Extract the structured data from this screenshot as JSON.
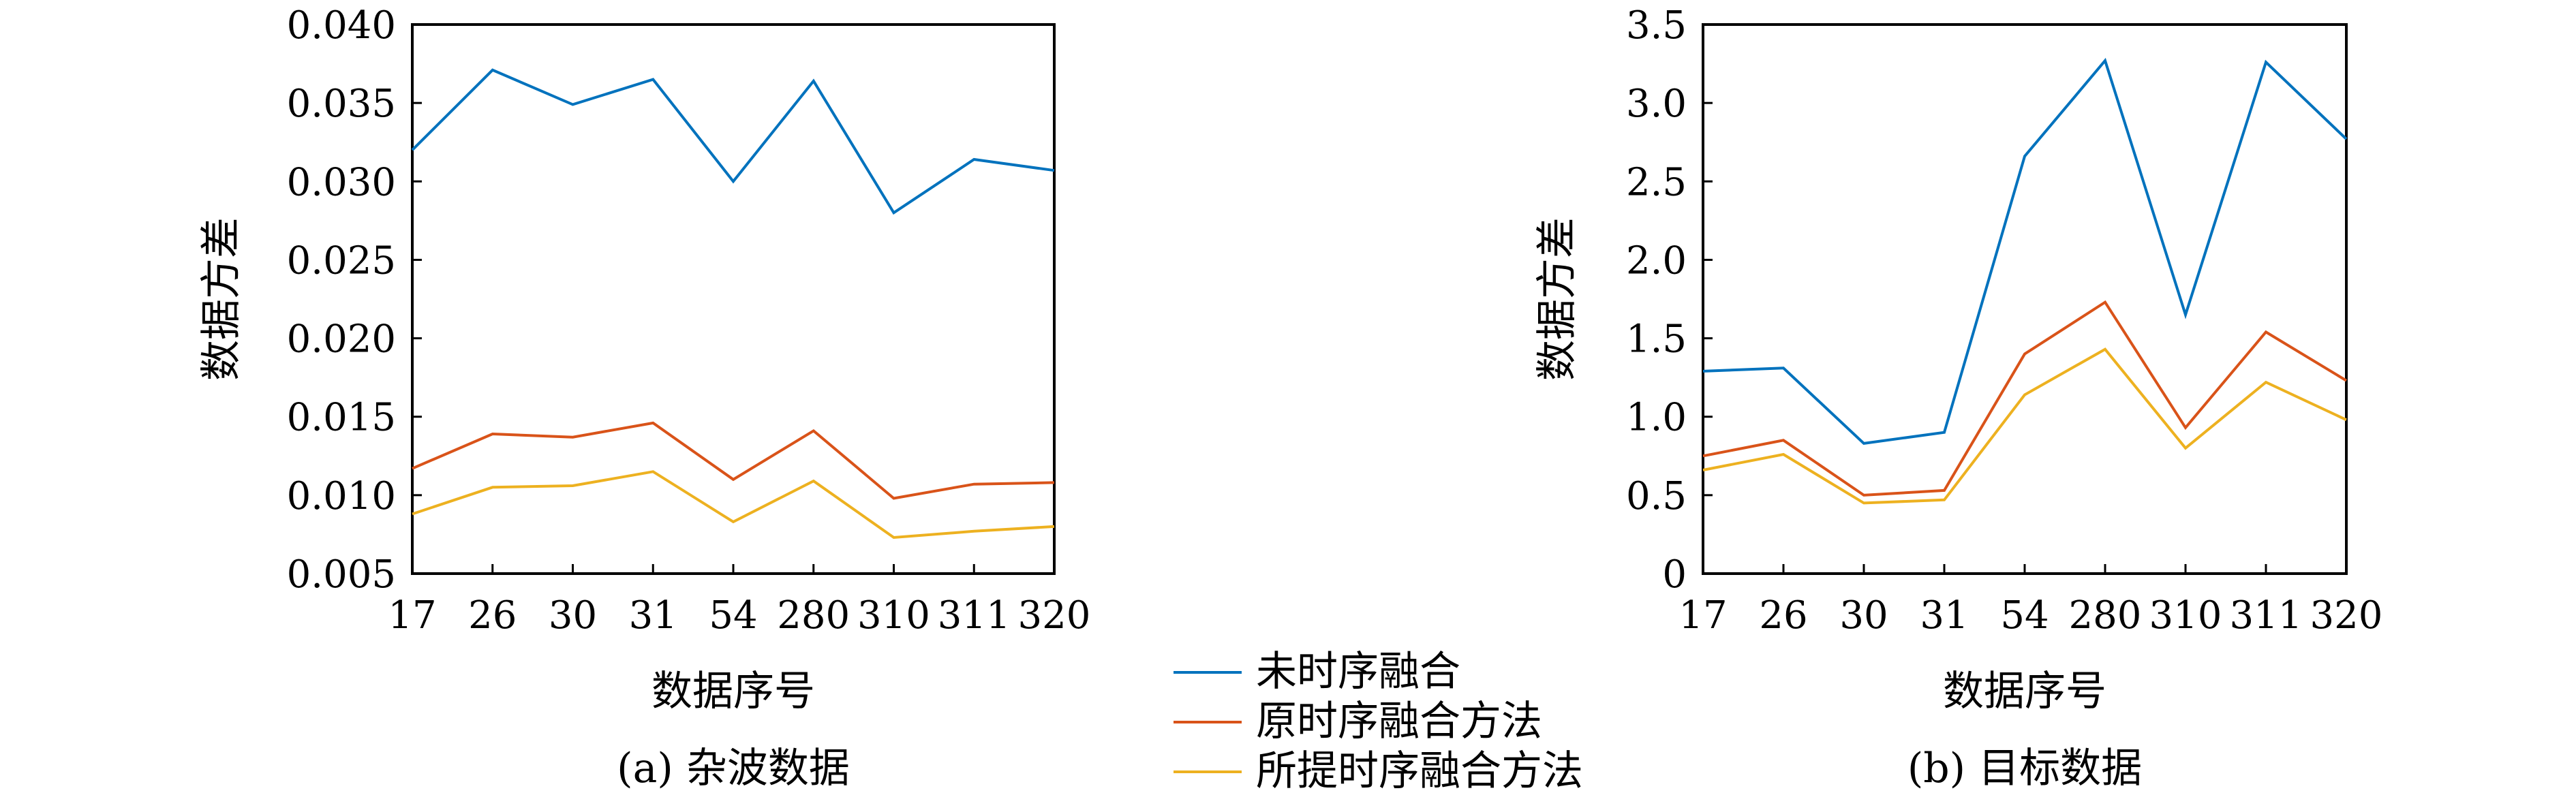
{
  "colors": {
    "series1": "#0072bd",
    "series2": "#d95319",
    "series3": "#edb120",
    "axis": "#000000"
  },
  "legend": {
    "entries": [
      "未时序融合",
      "原时序融合方法",
      "所提时序融合方法"
    ]
  },
  "chart_data": [
    {
      "type": "line",
      "caption": "(a) 杂波数据",
      "xlabel": "数据序号",
      "ylabel": "数据方差",
      "categories": [
        "17",
        "26",
        "30",
        "31",
        "54",
        "280",
        "310",
        "311",
        "320"
      ],
      "ylim": [
        0.005,
        0.04
      ],
      "yticks": [
        "0.005",
        "0.010",
        "0.015",
        "0.020",
        "0.025",
        "0.030",
        "0.035",
        "0.040"
      ],
      "grid": false,
      "series": [
        {
          "name": "未时序融合",
          "values": [
            0.032,
            0.0371,
            0.0349,
            0.0365,
            0.03,
            0.0364,
            0.028,
            0.0314,
            0.0307
          ]
        },
        {
          "name": "原时序融合方法",
          "values": [
            0.0117,
            0.0139,
            0.0137,
            0.0146,
            0.011,
            0.0141,
            0.0098,
            0.0107,
            0.0108
          ]
        },
        {
          "name": "所提时序融合方法",
          "values": [
            0.0088,
            0.0105,
            0.0106,
            0.0115,
            0.0083,
            0.0109,
            0.0073,
            0.0077,
            0.008
          ]
        }
      ]
    },
    {
      "type": "line",
      "caption": "(b) 目标数据",
      "xlabel": "数据序号",
      "ylabel": "数据方差",
      "categories": [
        "17",
        "26",
        "30",
        "31",
        "54",
        "280",
        "310",
        "311",
        "320"
      ],
      "ylim": [
        0,
        3.5
      ],
      "yticks": [
        "0",
        "0.5",
        "1.0",
        "1.5",
        "2.0",
        "2.5",
        "3.0",
        "3.5"
      ],
      "grid": false,
      "series": [
        {
          "name": "未时序融合",
          "values": [
            1.29,
            1.31,
            0.83,
            0.9,
            2.66,
            3.27,
            1.65,
            3.26,
            2.77
          ]
        },
        {
          "name": "原时序融合方法",
          "values": [
            0.75,
            0.85,
            0.5,
            0.53,
            1.4,
            1.73,
            0.93,
            1.54,
            1.23
          ]
        },
        {
          "name": "所提时序融合方法",
          "values": [
            0.66,
            0.76,
            0.45,
            0.47,
            1.14,
            1.43,
            0.8,
            1.22,
            0.98
          ]
        }
      ]
    }
  ]
}
